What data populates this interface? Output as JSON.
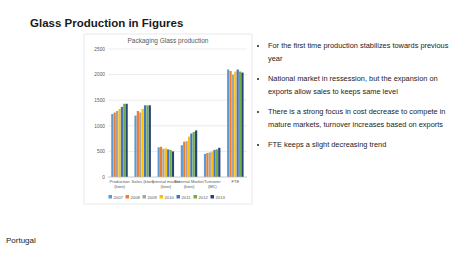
{
  "slide_title": "Glass Production in Figures",
  "bullets": [
    "For the first time production stabilizes towards previous year",
    "National market in ressession, but the expansion on exports allow sales to keeps same level",
    "There is a strong focus in cost decrease to compete in mature markets, turnover increases based on exports",
    "FTE keeps a slight decreasing trend"
  ],
  "footer": "Portugal",
  "chart_data": {
    "type": "bar",
    "title": "Packaging Glass production",
    "categories": [
      "Production (kton)",
      "Sales (kton)",
      "Internal market (kton)",
      "External Market (kton)",
      "Turnover (M€)",
      "FTE"
    ],
    "series": [
      {
        "name": "2007",
        "color": "#5b9bd5",
        "values": [
          1230,
          1200,
          580,
          620,
          450,
          2100
        ]
      },
      {
        "name": "2008",
        "color": "#ed7d31",
        "values": [
          1260,
          1290,
          590,
          690,
          470,
          2070
        ]
      },
      {
        "name": "2009",
        "color": "#a5a5a5",
        "values": [
          1290,
          1260,
          550,
          700,
          480,
          2000
        ]
      },
      {
        "name": "2010",
        "color": "#ffc000",
        "values": [
          1330,
          1330,
          560,
          790,
          500,
          2060
        ]
      },
      {
        "name": "2011",
        "color": "#4472c4",
        "values": [
          1370,
          1400,
          540,
          850,
          530,
          2100
        ]
      },
      {
        "name": "2012",
        "color": "#70ad47",
        "values": [
          1430,
          1400,
          530,
          880,
          540,
          2060
        ]
      },
      {
        "name": "2013",
        "color": "#264478",
        "values": [
          1430,
          1400,
          500,
          910,
          570,
          2040
        ]
      }
    ],
    "ylim": [
      0,
      2500
    ],
    "yticks": [
      0,
      500,
      1000,
      1500,
      2000,
      2500
    ],
    "grid": true,
    "legend": "bottom"
  }
}
